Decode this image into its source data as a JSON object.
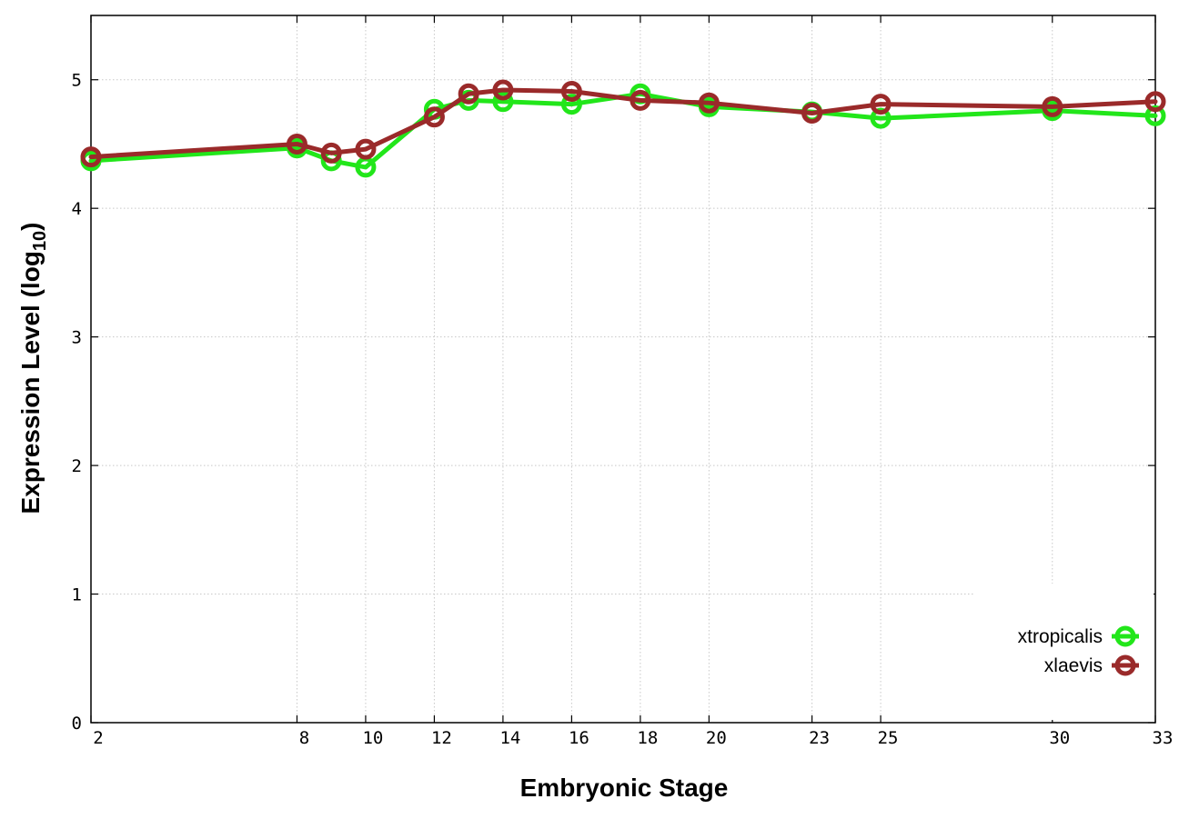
{
  "chart_data": {
    "type": "line",
    "title": "",
    "xlabel": "Embryonic Stage",
    "ylabel_main": "Expression Level (log",
    "ylabel_sub": "10",
    "ylabel_close": ")",
    "xlim": [
      2,
      33
    ],
    "ylim": [
      0,
      5.5
    ],
    "x_ticks": [
      2,
      8,
      10,
      12,
      14,
      16,
      18,
      20,
      23,
      25,
      30,
      33
    ],
    "y_ticks": [
      0,
      1,
      2,
      3,
      4,
      5
    ],
    "grid": true,
    "legend_position": "bottom-right",
    "series": [
      {
        "name": "xtropicalis",
        "color": "#22e61a",
        "x": [
          2,
          8,
          9,
          10,
          12,
          13,
          14,
          16,
          18,
          20,
          23,
          25,
          30,
          33
        ],
        "y": [
          4.37,
          4.47,
          4.37,
          4.32,
          4.77,
          4.84,
          4.83,
          4.81,
          4.89,
          4.79,
          4.75,
          4.7,
          4.76,
          4.72
        ]
      },
      {
        "name": "xlaevis",
        "color": "#9a2a2a",
        "x": [
          2,
          8,
          9,
          10,
          12,
          13,
          14,
          16,
          18,
          20,
          23,
          25,
          30,
          33
        ],
        "y": [
          4.4,
          4.5,
          4.43,
          4.46,
          4.71,
          4.89,
          4.92,
          4.91,
          4.84,
          4.82,
          4.74,
          4.81,
          4.79,
          4.83
        ]
      }
    ]
  }
}
